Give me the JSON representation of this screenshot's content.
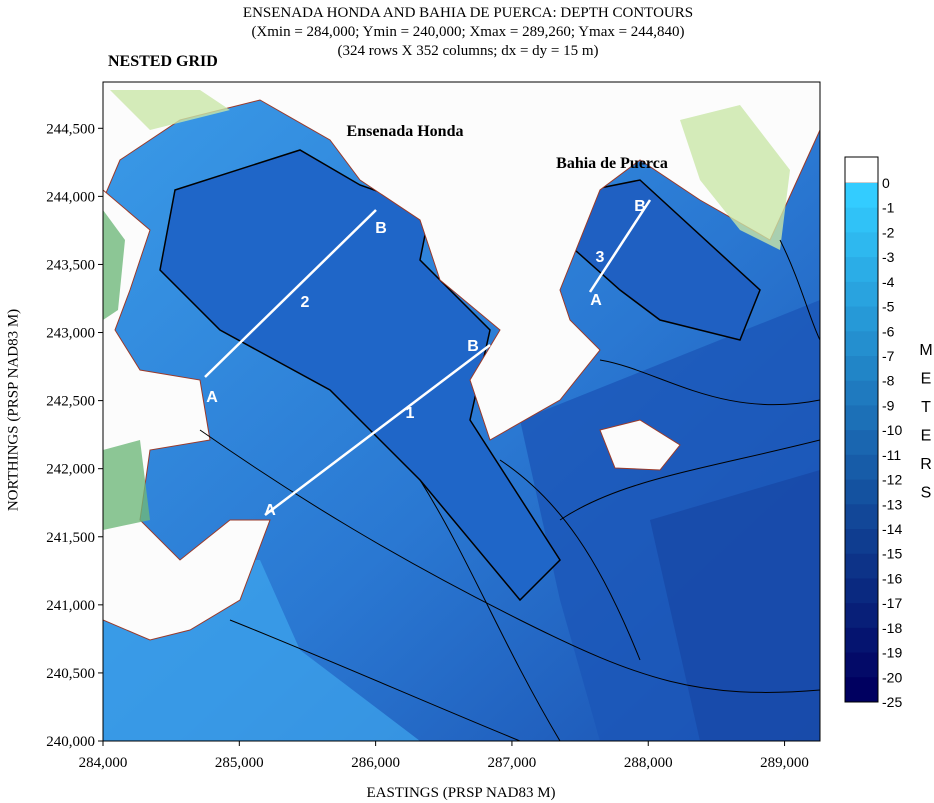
{
  "map": {
    "title": [
      "ENSENADA HONDA AND BAHIA DE PUERCA: DEPTH CONTOURS",
      "(Xmin = 284,000; Ymin = 240,000; Xmax = 289,260; Ymax = 244,840)",
      "(324 rows X 352 columns; dx = dy = 15 m)"
    ],
    "subtitle": "NESTED GRID",
    "xlabel": "EASTINGS (PRSP NAD83 M)",
    "ylabel": "NORTHINGS (PRSP NAD83 M)",
    "xlim": [
      284000,
      289260
    ],
    "ylim": [
      240000,
      244840
    ],
    "xticks": [
      {
        "value": 284000,
        "label": "284,000"
      },
      {
        "value": 285000,
        "label": "285,000"
      },
      {
        "value": 286000,
        "label": "286,000"
      },
      {
        "value": 287000,
        "label": "287,000"
      },
      {
        "value": 288000,
        "label": "288,000"
      },
      {
        "value": 289000,
        "label": "289,000"
      }
    ],
    "yticks": [
      {
        "value": 240000,
        "label": "240,000"
      },
      {
        "value": 240500,
        "label": "240,500"
      },
      {
        "value": 241000,
        "label": "241,000"
      },
      {
        "value": 241500,
        "label": "241,500"
      },
      {
        "value": 242000,
        "label": "242,000"
      },
      {
        "value": 242500,
        "label": "242,500"
      },
      {
        "value": 243000,
        "label": "243,000"
      },
      {
        "value": 243500,
        "label": "243,500"
      },
      {
        "value": 244000,
        "label": "244,000"
      },
      {
        "value": 244500,
        "label": "244,500"
      }
    ],
    "colorbar": {
      "label": "METERS",
      "levels": [
        0,
        -1,
        -2,
        -3,
        -4,
        -5,
        -6,
        -7,
        -8,
        -9,
        -10,
        -11,
        -12,
        -13,
        -14,
        -15,
        -16,
        -17,
        -18,
        -19,
        -20,
        -25
      ],
      "color_top": "#33ccff",
      "color_bottom": "#000060"
    },
    "places": [
      "Ensenada Honda",
      "Bahia de Puerca"
    ],
    "transects": [
      {
        "name": "2",
        "start": "A",
        "end": "B"
      },
      {
        "name": "1",
        "start": "A",
        "end": "B"
      },
      {
        "name": "3",
        "start": "A",
        "end": "B"
      }
    ]
  }
}
